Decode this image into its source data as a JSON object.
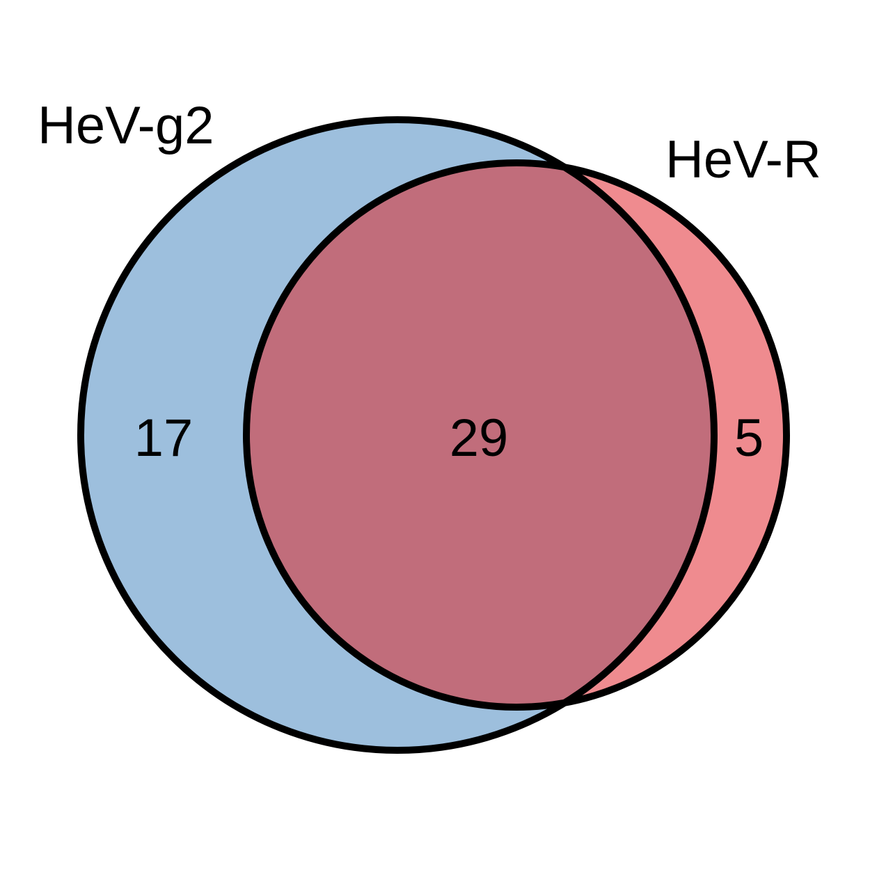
{
  "diagram": {
    "type": "venn",
    "sets": [
      {
        "label": "HeV-g2",
        "color": "#9dbfdd"
      },
      {
        "label": "HeV-R",
        "color": "#ef8b8f"
      }
    ],
    "overlap_color": "#c16d7b",
    "outline_color": "#000000",
    "counts": {
      "only_set1": "17",
      "both": "29",
      "only_set2": "5"
    }
  }
}
